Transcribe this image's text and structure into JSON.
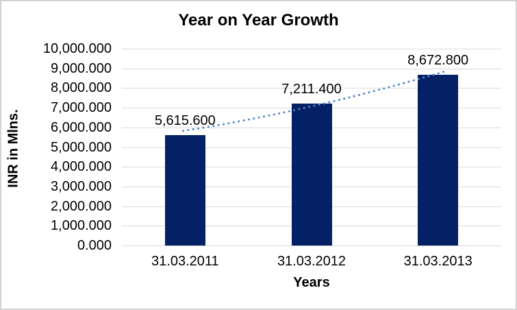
{
  "chart_data": {
    "type": "bar",
    "title": "Year on Year Growth",
    "xlabel": "Years",
    "ylabel": "INR in Mlns.",
    "categories": [
      "31.03.2011",
      "31.03.2012",
      "31.03.2013"
    ],
    "values": [
      5615.6,
      7211.4,
      8672.8
    ],
    "data_labels": [
      "5,615.600",
      "7,211.400",
      "8,672.800"
    ],
    "ylim": [
      0,
      10000
    ],
    "ytick_step": 1000,
    "ytick_labels_top_to_bottom": [
      "10,000.000",
      "9,000.000",
      "8,000.000",
      "7,000.000",
      "6,000.000",
      "5,000.000",
      "4,000.000",
      "3,000.000",
      "2,000.000",
      "1,000.000",
      "0.000"
    ],
    "grid": true,
    "legend": "none",
    "bar_color": "#032164",
    "gridline_color": "#d9d9d9",
    "text_color": "#000000",
    "trendline": {
      "style": "dotted",
      "color": "#4f86c6"
    }
  }
}
